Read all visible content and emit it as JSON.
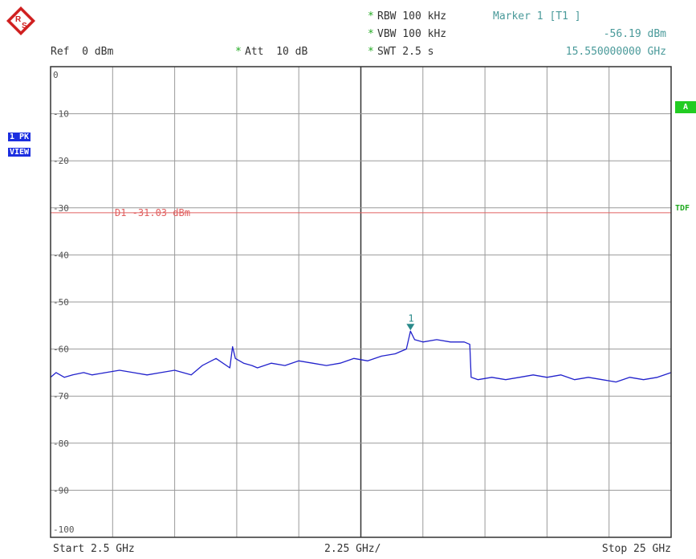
{
  "header": {
    "rbw": "RBW 100 kHz",
    "vbw": "VBW 100 kHz",
    "swt": "SWT 2.5 s",
    "att": "Att  10 dB",
    "ref": "Ref  0 dBm",
    "marker_title": "Marker 1 [T1 ]",
    "marker_level": "-56.19 dBm",
    "marker_freq": "15.550000000 GHz",
    "star": "*"
  },
  "side": {
    "trace_mode": "1 PK",
    "view": "VIEW",
    "a_label": "A",
    "tdf_label": "TDF"
  },
  "footer": {
    "start": "Start 2.5 GHz",
    "span_per_div": "2.25 GHz/",
    "stop": "Stop 25 GHz"
  },
  "logo": {
    "text": "R&S"
  },
  "colors": {
    "trace": "#2222cc",
    "display_line": "#e06060",
    "marker": "#2a8a8a",
    "grid": "#9a9a9a",
    "frame": "#333333"
  },
  "chart_data": {
    "type": "line",
    "x_unit": "GHz",
    "y_unit": "dBm",
    "xlim": [
      2.5,
      25
    ],
    "ylim": [
      -100,
      0
    ],
    "x_divisions": 10,
    "y_ticks": [
      0,
      -10,
      -20,
      -30,
      -40,
      -50,
      -60,
      -70,
      -80,
      -90,
      -100
    ],
    "y_tick_labels": [
      "0",
      "-10",
      "-20",
      "-30",
      "-40",
      "-50",
      "-60",
      "-70",
      "-80",
      "-90",
      "-100"
    ],
    "grid": true,
    "display_line": {
      "label": "D1  -31.03 dBm",
      "value": -31.03
    },
    "marker": {
      "label": "1",
      "x": 15.55,
      "y": -56.19
    },
    "series": [
      {
        "x": [
          2.5,
          2.7,
          3.0,
          3.3,
          3.7,
          4.0,
          4.5,
          5.0,
          5.5,
          6.0,
          6.5,
          7.0,
          7.3,
          7.6,
          8.0,
          8.5,
          9.0,
          9.1,
          9.2,
          9.5,
          9.8,
          10.0,
          10.5,
          11.0,
          11.5,
          12.0,
          12.5,
          13.0,
          13.5,
          14.0,
          14.5,
          15.0,
          15.2,
          15.4,
          15.55,
          15.7,
          16.0,
          16.5,
          17.0,
          17.5,
          17.7,
          17.75,
          18.0,
          18.5,
          19.0,
          19.5,
          20.0,
          20.5,
          21.0,
          21.5,
          22.0,
          22.5,
          23.0,
          23.5,
          24.0,
          24.5,
          25.0
        ],
        "y": [
          -66,
          -65,
          -66,
          -65.5,
          -65,
          -65.5,
          -65,
          -64.5,
          -65,
          -65.5,
          -65,
          -64.5,
          -65,
          -65.5,
          -63.5,
          -62,
          -64,
          -59.5,
          -62,
          -63,
          -63.5,
          -64,
          -63,
          -63.5,
          -62.5,
          -63,
          -63.5,
          -63,
          -62,
          -62.5,
          -61.5,
          -61,
          -60.5,
          -60,
          -56.19,
          -58,
          -58.5,
          -58,
          -58.5,
          -58.5,
          -59,
          -66,
          -66.5,
          -66,
          -66.5,
          -66,
          -65.5,
          -66,
          -65.5,
          -66.5,
          -66,
          -66.5,
          -67,
          -66,
          -66.5,
          -66,
          -65
        ]
      }
    ]
  }
}
